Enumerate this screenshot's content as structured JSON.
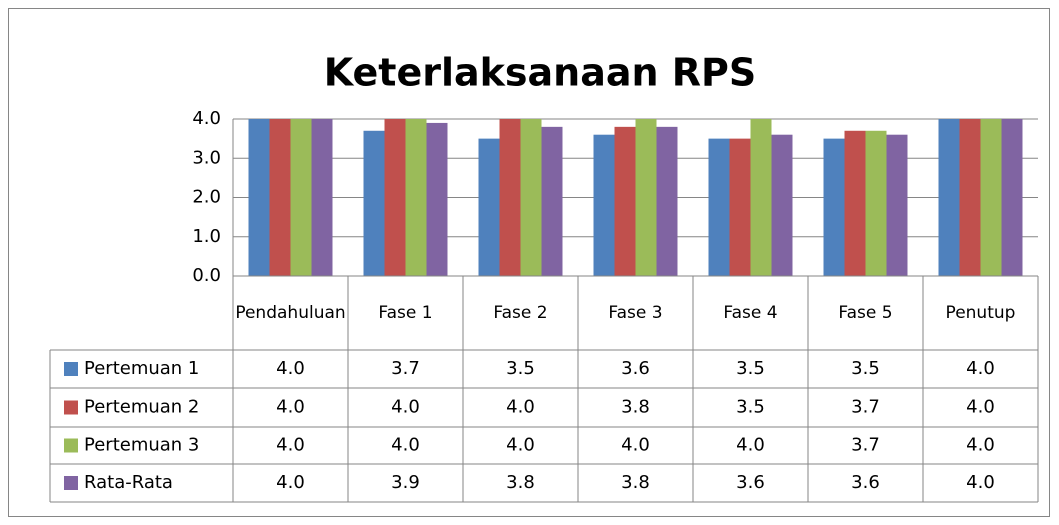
{
  "chart_data": {
    "type": "bar",
    "title": "Keterlaksanaan RPS",
    "categories": [
      "Pendahuluan",
      "Fase 1",
      "Fase 2",
      "Fase 3",
      "Fase 4",
      "Fase 5",
      "Penutup"
    ],
    "series": [
      {
        "name": "Pertemuan 1",
        "color": "#4f81bd",
        "values": [
          4.0,
          3.7,
          3.5,
          3.6,
          3.5,
          3.5,
          4.0
        ],
        "value_labels": [
          "4.0",
          "3.7",
          "3.5",
          "3.6",
          "3.5",
          "3.5",
          "4.0"
        ]
      },
      {
        "name": "Pertemuan 2",
        "color": "#c0504d",
        "values": [
          4.0,
          4.0,
          4.0,
          3.8,
          3.5,
          3.7,
          4.0
        ],
        "value_labels": [
          "4.0",
          "4.0",
          "4.0",
          "3.8",
          "3.5",
          "3.7",
          "4.0"
        ]
      },
      {
        "name": "Pertemuan 3",
        "color": "#9bbb59",
        "values": [
          4.0,
          4.0,
          4.0,
          4.0,
          4.0,
          3.7,
          4.0
        ],
        "value_labels": [
          "4.0",
          "4.0",
          "4.0",
          "4.0",
          "4.0",
          "3.7",
          "4.0"
        ]
      },
      {
        "name": "Rata-Rata",
        "color": "#8064a2",
        "values": [
          4.0,
          3.9,
          3.8,
          3.8,
          3.6,
          3.6,
          4.0
        ],
        "value_labels": [
          "4.0",
          "3.9",
          "3.8",
          "3.8",
          "3.6",
          "3.6",
          "4.0"
        ]
      }
    ],
    "ylim": [
      0,
      4
    ],
    "yticks": [
      {
        "value": 0,
        "label": "0.0"
      },
      {
        "value": 1,
        "label": "1.0"
      },
      {
        "value": 2,
        "label": "2.0"
      },
      {
        "value": 3,
        "label": "3.0"
      },
      {
        "value": 4,
        "label": "4.0"
      }
    ],
    "grid": true
  }
}
